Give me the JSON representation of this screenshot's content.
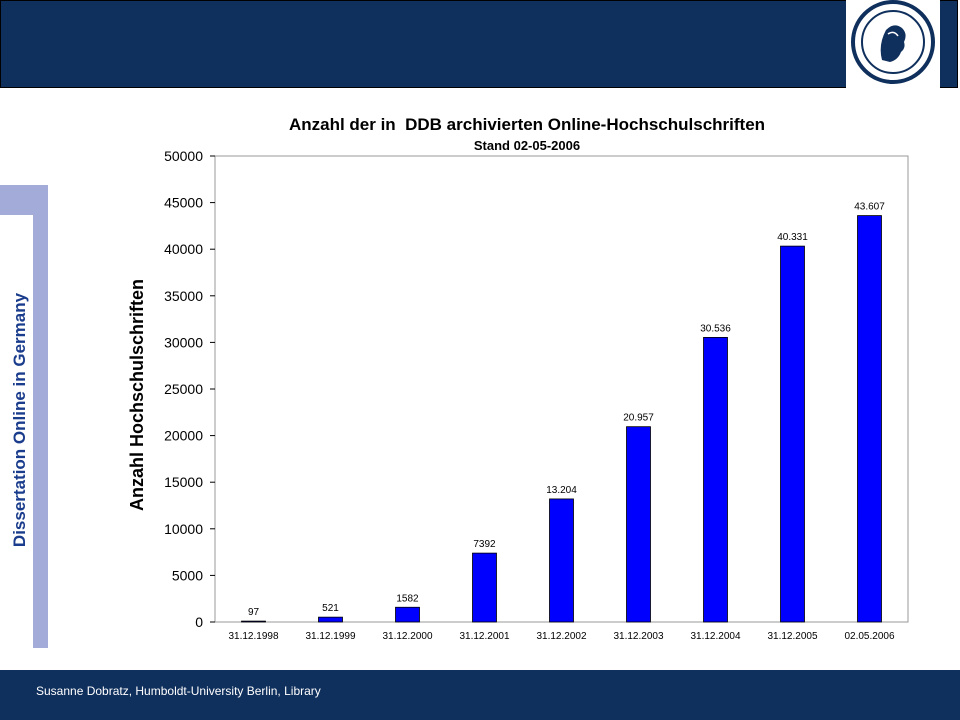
{
  "header": {
    "logo_name": "humboldt-university-seal"
  },
  "side_title": "Dissertation Online in Germany",
  "footer": {
    "text": "Susanne Dobratz, Humboldt-University Berlin, Library"
  },
  "colors": {
    "header_bg": "#0f2f5c",
    "bar_fill": "#0000ff",
    "side_title": "#1a3c8c"
  },
  "chart_data": {
    "type": "bar",
    "title": "Anzahl der in  DDB archivierten Online-Hochschulschriften",
    "subtitle": "Stand 02-05-2006",
    "xlabel": "",
    "ylabel": "Anzahl Hochschulschriften",
    "ylim": [
      0,
      50000
    ],
    "yticks": [
      0,
      5000,
      10000,
      15000,
      20000,
      25000,
      30000,
      35000,
      40000,
      45000,
      50000
    ],
    "categories": [
      "31.12.1998",
      "31.12.1999",
      "31.12.2000",
      "31.12.2001",
      "31.12.2002",
      "31.12.2003",
      "31.12.2004",
      "31.12.2005",
      "02.05.2006"
    ],
    "values": [
      97,
      521,
      1582,
      7392,
      13204,
      20957,
      30536,
      40331,
      43607
    ],
    "value_labels": [
      "97",
      "521",
      "1582",
      "7392",
      "13.204",
      "20.957",
      "30.536",
      "40.331",
      "43.607"
    ],
    "grid": false,
    "legend": "none"
  }
}
